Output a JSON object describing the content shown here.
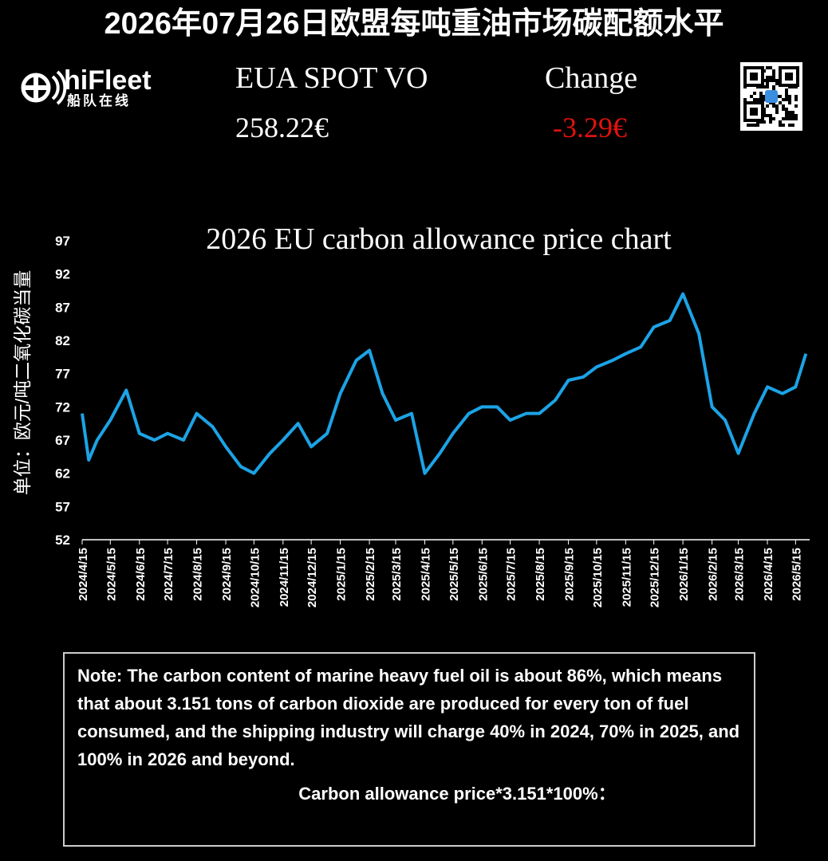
{
  "header": {
    "title": "2026年07月26日欧盟每吨重油市场碳配额水平",
    "logo_name": "hiFleet",
    "logo_subtitle": "船队在线",
    "price_label": "EUA SPOT VO",
    "price_value": "258.22€",
    "change_label": "Change",
    "change_value": "-3.29€"
  },
  "chart_data": {
    "type": "line",
    "title": "2026 EU carbon allowance price chart",
    "y_label": "单位：欧元/吨二氧化碳当量",
    "x": [
      "2024/4/15",
      "2024/4/22",
      "2024/5/1",
      "2024/5/15",
      "2024/6/1",
      "2024/6/15",
      "2024/7/1",
      "2024/7/15",
      "2024/8/1",
      "2024/8/15",
      "2024/9/1",
      "2024/9/15",
      "2024/10/1",
      "2024/10/15",
      "2024/11/1",
      "2024/11/15",
      "2024/12/1",
      "2024/12/15",
      "2025/1/1",
      "2025/1/15",
      "2025/2/1",
      "2025/2/15",
      "2025/3/1",
      "2025/3/15",
      "2025/4/1",
      "2025/4/15",
      "2025/5/1",
      "2025/5/15",
      "2025/6/1",
      "2025/6/15",
      "2025/7/1",
      "2025/7/15",
      "2025/8/1",
      "2025/8/15",
      "2025/9/1",
      "2025/9/15",
      "2025/10/1",
      "2025/10/15",
      "2025/11/1",
      "2025/11/15",
      "2025/12/1",
      "2025/12/15",
      "2026/1/1",
      "2026/1/15",
      "2026/2/1",
      "2026/2/15",
      "2026/3/1",
      "2026/3/15",
      "2026/4/1",
      "2026/4/15",
      "2026/5/1",
      "2026/5/15",
      "2026/5/26"
    ],
    "series": [
      {
        "name": "EUA",
        "color": "#1ca3e6",
        "values": [
          71,
          64,
          67,
          70,
          74.5,
          68,
          67,
          68,
          67,
          71,
          69,
          66,
          63,
          62,
          65,
          67,
          69.5,
          66,
          68,
          74,
          79,
          80.5,
          74,
          70,
          71,
          62,
          65,
          68,
          71,
          72,
          72,
          70,
          71,
          71,
          73,
          76,
          76.5,
          78,
          79,
          80,
          81,
          84,
          85,
          89,
          83,
          72,
          70,
          65,
          71,
          75,
          74,
          75,
          80
        ]
      }
    ],
    "xlim": [
      "2024/4/15",
      "2026/5/30"
    ],
    "xticks": [
      "2024/4/15",
      "2024/5/15",
      "2024/6/15",
      "2024/7/15",
      "2024/8/15",
      "2024/9/15",
      "2024/10/15",
      "2024/11/15",
      "2024/12/15",
      "2025/1/15",
      "2025/2/15",
      "2025/3/15",
      "2025/4/15",
      "2025/5/15",
      "2025/6/15",
      "2025/7/15",
      "2025/8/15",
      "2025/9/15",
      "2025/10/15",
      "2025/11/15",
      "2025/12/15",
      "2026/1/15",
      "2026/2/15",
      "2026/3/15",
      "2026/4/15",
      "2026/5/15"
    ],
    "ylim": [
      52,
      97
    ],
    "yticks": [
      52,
      57,
      62,
      67,
      72,
      77,
      82,
      87,
      92,
      97
    ],
    "grid": false
  },
  "note": {
    "text": "Note: The carbon content of marine heavy fuel oil is about 86%, which means that about 3.151 tons of carbon dioxide are produced for every ton of fuel consumed, and the shipping industry will charge 40% in 2024, 70% in 2025, and 100% in 2026 and beyond.",
    "formula": "Carbon allowance price*3.151*100%："
  }
}
